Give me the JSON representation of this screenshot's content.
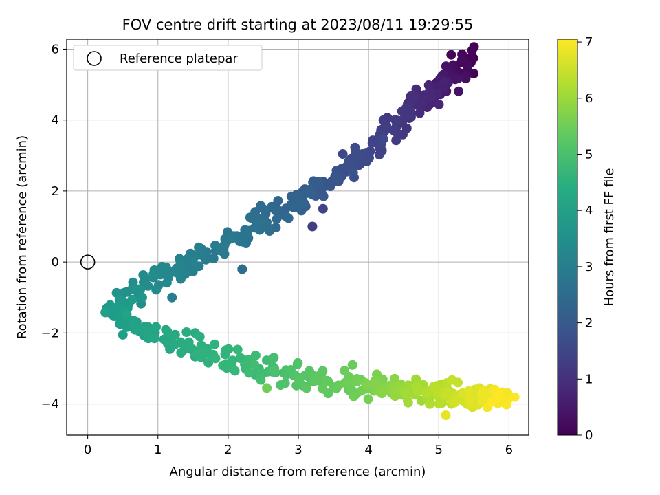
{
  "chart_data": {
    "type": "scatter",
    "title": "FOV centre drift starting at 2023/08/11 19:29:55",
    "xlabel": "Angular distance from reference (arcmin)",
    "ylabel": "Rotation from reference (arcmin)",
    "xlim": [
      -0.3,
      6.28
    ],
    "ylim": [
      -4.88,
      6.28
    ],
    "xticks": [
      "0",
      "1",
      "2",
      "3",
      "4",
      "5",
      "6"
    ],
    "yticks": [
      "−4",
      "−2",
      "0",
      "2",
      "4",
      "6"
    ],
    "grid": true,
    "legend": {
      "position": "top-left",
      "entries": [
        "Reference platepar"
      ]
    },
    "reference_point": {
      "x": 0,
      "y": 0
    },
    "colorbar": {
      "label": "Hours from first FF file",
      "range": [
        0,
        7.05
      ],
      "ticks": [
        "0",
        "1",
        "2",
        "3",
        "4",
        "5",
        "6",
        "7"
      ],
      "colormap": "viridis"
    },
    "trend_path": [
      {
        "hours": 0.0,
        "x": 5.42,
        "y": 5.72
      },
      {
        "hours": 0.35,
        "x": 5.2,
        "y": 5.2
      },
      {
        "hours": 0.75,
        "x": 4.85,
        "y": 4.6
      },
      {
        "hours": 1.1,
        "x": 4.5,
        "y": 4.1
      },
      {
        "hours": 1.5,
        "x": 4.0,
        "y": 3.1
      },
      {
        "hours": 1.9,
        "x": 3.4,
        "y": 2.2
      },
      {
        "hours": 2.3,
        "x": 2.8,
        "y": 1.5
      },
      {
        "hours": 2.7,
        "x": 2.2,
        "y": 0.8
      },
      {
        "hours": 3.0,
        "x": 1.6,
        "y": 0.15
      },
      {
        "hours": 3.3,
        "x": 1.05,
        "y": -0.45
      },
      {
        "hours": 3.6,
        "x": 0.55,
        "y": -1.05
      },
      {
        "hours": 3.85,
        "x": 0.4,
        "y": -1.35
      },
      {
        "hours": 4.1,
        "x": 0.85,
        "y": -1.95
      },
      {
        "hours": 4.4,
        "x": 1.5,
        "y": -2.45
      },
      {
        "hours": 4.7,
        "x": 2.2,
        "y": -2.85
      },
      {
        "hours": 5.1,
        "x": 3.0,
        "y": -3.2
      },
      {
        "hours": 5.6,
        "x": 4.0,
        "y": -3.55
      },
      {
        "hours": 6.2,
        "x": 4.9,
        "y": -3.7
      },
      {
        "hours": 7.05,
        "x": 5.95,
        "y": -3.85
      }
    ],
    "point_count": 640,
    "spread_x": 0.09,
    "spread_y": 0.17,
    "extra_points": [
      {
        "hours": 0.0,
        "x": 5.42,
        "y": 5.72
      },
      {
        "hours": 0.05,
        "x": 5.33,
        "y": 5.7
      },
      {
        "hours": 0.15,
        "x": 5.28,
        "y": 5.35
      },
      {
        "hours": 1.3,
        "x": 3.2,
        "y": 1.0
      },
      {
        "hours": 1.4,
        "x": 3.35,
        "y": 1.5
      },
      {
        "hours": 3.0,
        "x": 1.2,
        "y": -1.0
      },
      {
        "hours": 2.5,
        "x": 2.2,
        "y": -0.2
      },
      {
        "hours": 3.95,
        "x": 0.5,
        "y": -2.05
      },
      {
        "hours": 4.0,
        "x": 0.25,
        "y": -1.42
      },
      {
        "hours": 5.5,
        "x": 2.55,
        "y": -3.55
      },
      {
        "hours": 6.8,
        "x": 5.1,
        "y": -4.32
      },
      {
        "hours": 7.0,
        "x": 5.95,
        "y": -3.88
      }
    ]
  }
}
